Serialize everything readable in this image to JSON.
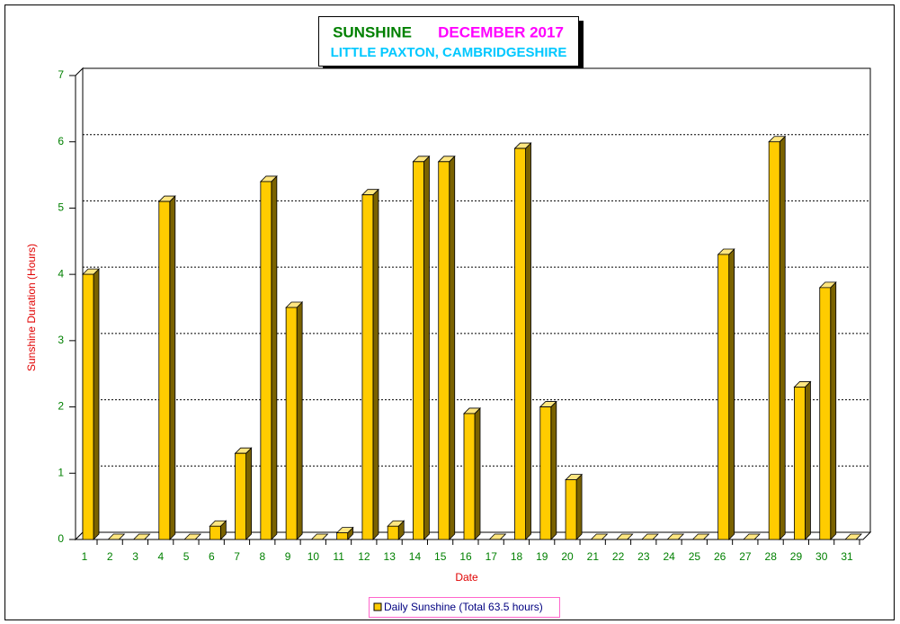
{
  "chart_data": {
    "type": "bar3d",
    "title": "SUNSHINE",
    "title_period": "DECEMBER 2017",
    "subtitle": "LITTLE PAXTON, CAMBRIDGESHIRE",
    "xlabel": "Date",
    "ylabel": "Sunshine Duration (Hours)",
    "categories": [
      "1",
      "2",
      "3",
      "4",
      "5",
      "6",
      "7",
      "8",
      "9",
      "10",
      "11",
      "12",
      "13",
      "14",
      "15",
      "16",
      "17",
      "18",
      "19",
      "20",
      "21",
      "22",
      "23",
      "24",
      "25",
      "26",
      "27",
      "28",
      "29",
      "30",
      "31"
    ],
    "series": [
      {
        "name": "Daily Sunshine (Total 63.5 hours)",
        "color": "#ffcc00",
        "values": [
          4.0,
          0,
          0,
          5.1,
          0,
          0.2,
          1.3,
          5.4,
          3.5,
          0,
          0.1,
          5.2,
          0.2,
          5.7,
          5.7,
          1.9,
          0,
          5.9,
          2.0,
          0.9,
          0,
          0,
          0,
          0,
          0,
          4.3,
          0,
          6.0,
          2.3,
          3.8,
          0
        ]
      }
    ],
    "ylim": [
      0,
      7
    ],
    "yticks": [
      0,
      1,
      2,
      3,
      4,
      5,
      6,
      7
    ],
    "grid": true,
    "legend": "bottom"
  }
}
